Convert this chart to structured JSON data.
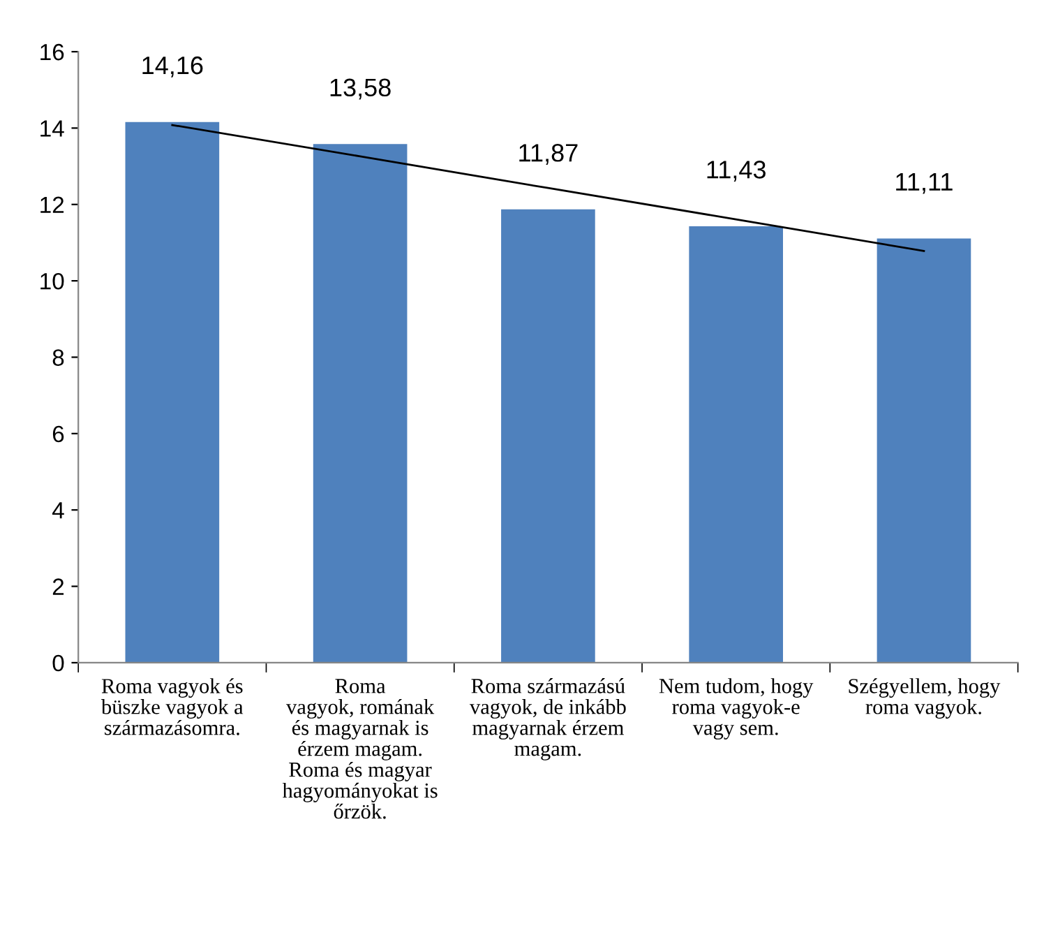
{
  "chart_data": {
    "type": "bar",
    "categories": [
      "Roma vagyok és\nbüszke vagyok a\nszármazásomra.",
      "Roma\nvagyok, romának\nés magyarnak is\nérzem magam.\nRoma és magyar\nhagyományokat is\nőrzök.",
      "Roma származású\nvagyok, de inkább\nmagyarnak érzem\nmagam.",
      "Nem tudom, hogy\nroma vagyok-e\nvagy sem.",
      "Szégyellem, hogy\nroma vagyok."
    ],
    "series": [
      {
        "color": "#4f81bd",
        "values": [
          14.16,
          13.58,
          11.87,
          11.43,
          11.11
        ]
      },
      {
        "type": "line",
        "color": "#000000",
        "values": [
          14.08,
          13.26,
          12.43,
          11.61,
          10.78
        ]
      }
    ],
    "value_labels": [
      "14,16",
      "13,58",
      "11,87",
      "11,43",
      "11,11"
    ],
    "ylim": [
      0,
      16
    ],
    "yticks": [
      0,
      2,
      4,
      6,
      8,
      10,
      12,
      14,
      16
    ],
    "grid": false,
    "legend": false,
    "marker": "none",
    "line_style": "solid"
  }
}
